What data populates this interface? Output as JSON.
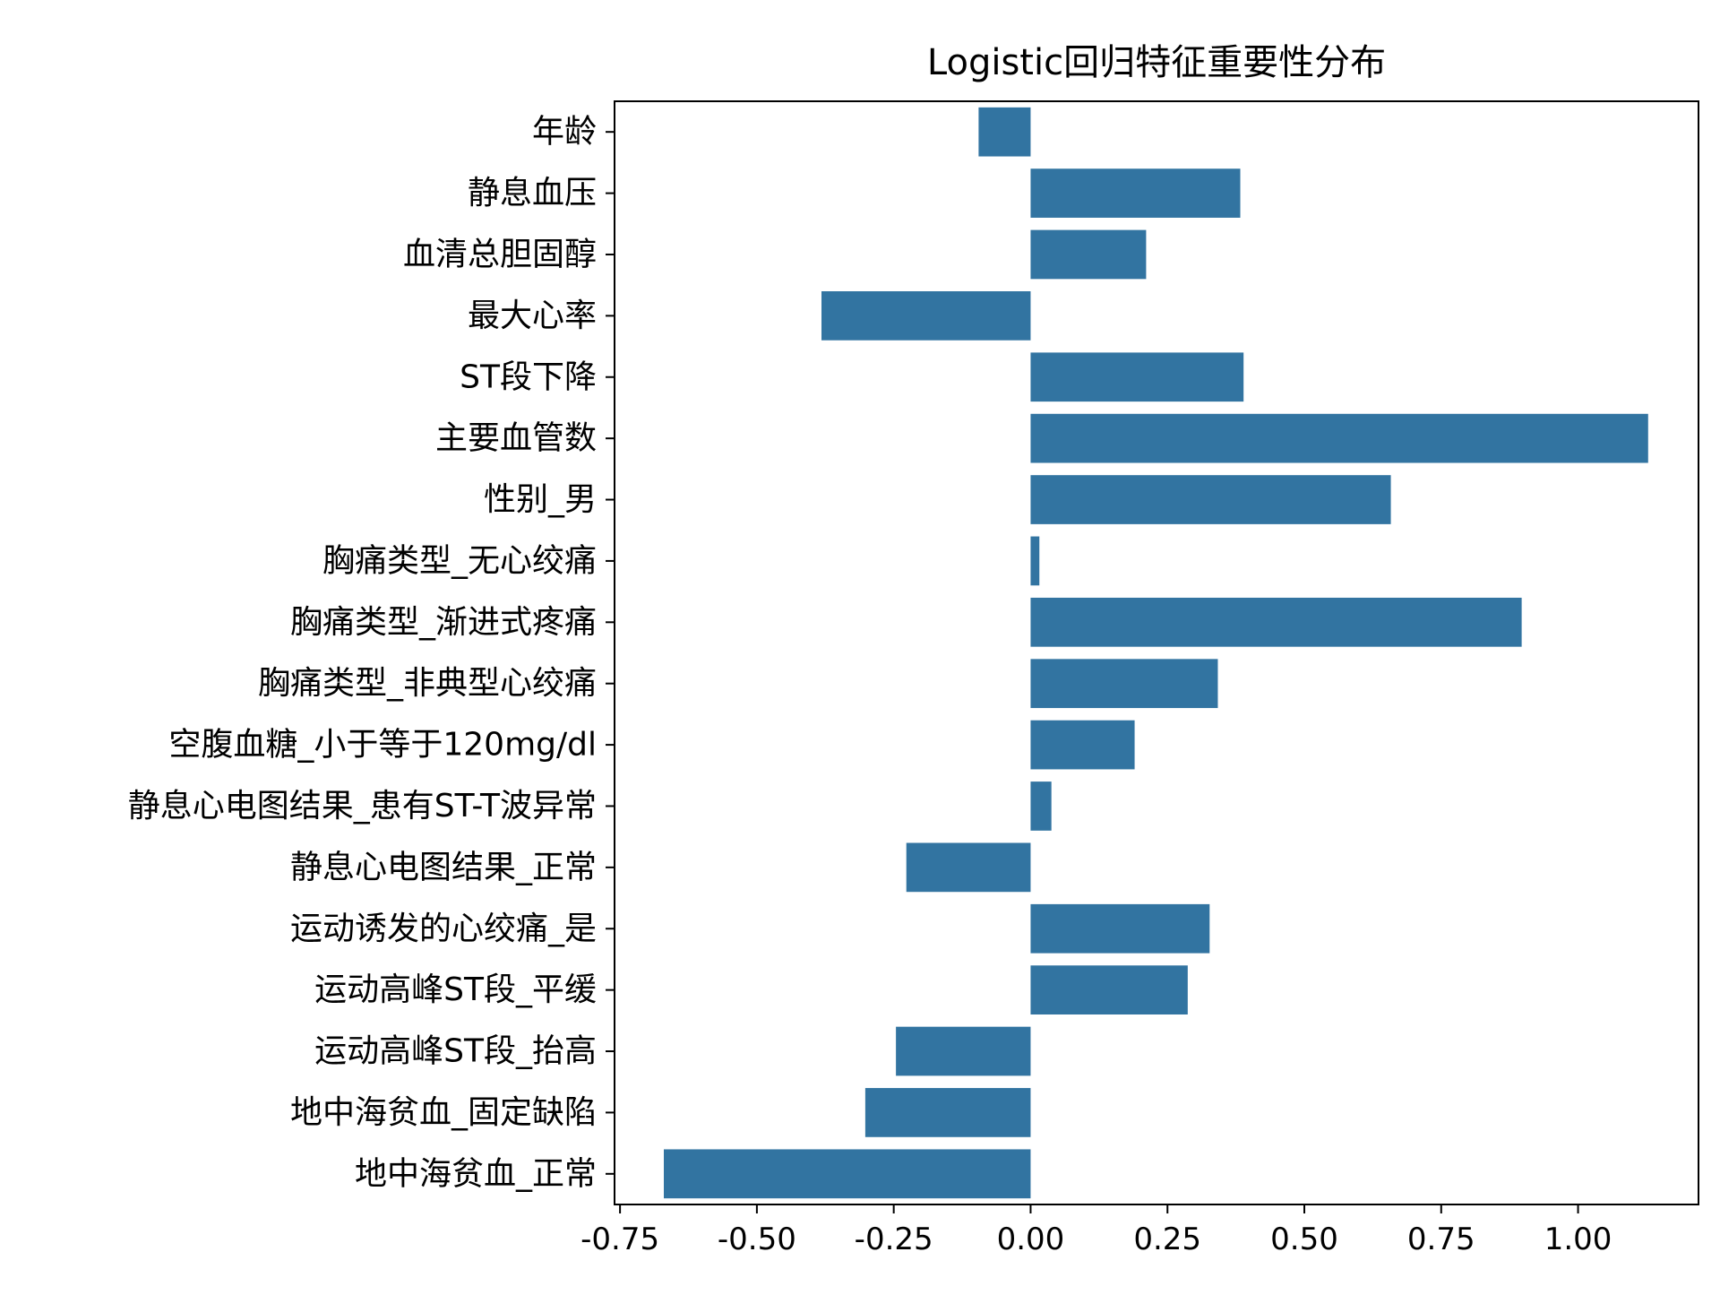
{
  "chart_data": {
    "type": "bar",
    "orientation": "horizontal",
    "title": "Logistic回归特征重要性分布",
    "xlabel": "",
    "ylabel": "",
    "xlim": [
      -0.76,
      1.22
    ],
    "xticks": [
      -0.75,
      -0.5,
      -0.25,
      0.0,
      0.25,
      0.5,
      0.75,
      1.0
    ],
    "xtick_labels": [
      "-0.75",
      "-0.50",
      "-0.25",
      "0.00",
      "0.25",
      "0.50",
      "0.75",
      "1.00"
    ],
    "grid": false,
    "bar_color": "#3274a1",
    "categories": [
      "年龄",
      "静息血压",
      "血清总胆固醇",
      "最大心率",
      "ST段下降",
      "主要血管数",
      "性别_男",
      "胸痛类型_无心绞痛",
      "胸痛类型_渐进式疼痛",
      "胸痛类型_非典型心绞痛",
      "空腹血糖_小于等于120mg/dl",
      "静息心电图结果_患有ST-T波异常",
      "静息心电图结果_正常",
      "运动诱发的心绞痛_是",
      "运动高峰ST段_平缓",
      "运动高峰ST段_抬高",
      "地中海贫血_固定缺陷",
      "地中海贫血_正常"
    ],
    "values": [
      -0.095,
      0.383,
      0.211,
      -0.382,
      0.389,
      1.128,
      0.658,
      0.016,
      0.897,
      0.342,
      0.19,
      0.038,
      -0.227,
      0.327,
      0.287,
      -0.246,
      -0.302,
      -0.67
    ]
  }
}
